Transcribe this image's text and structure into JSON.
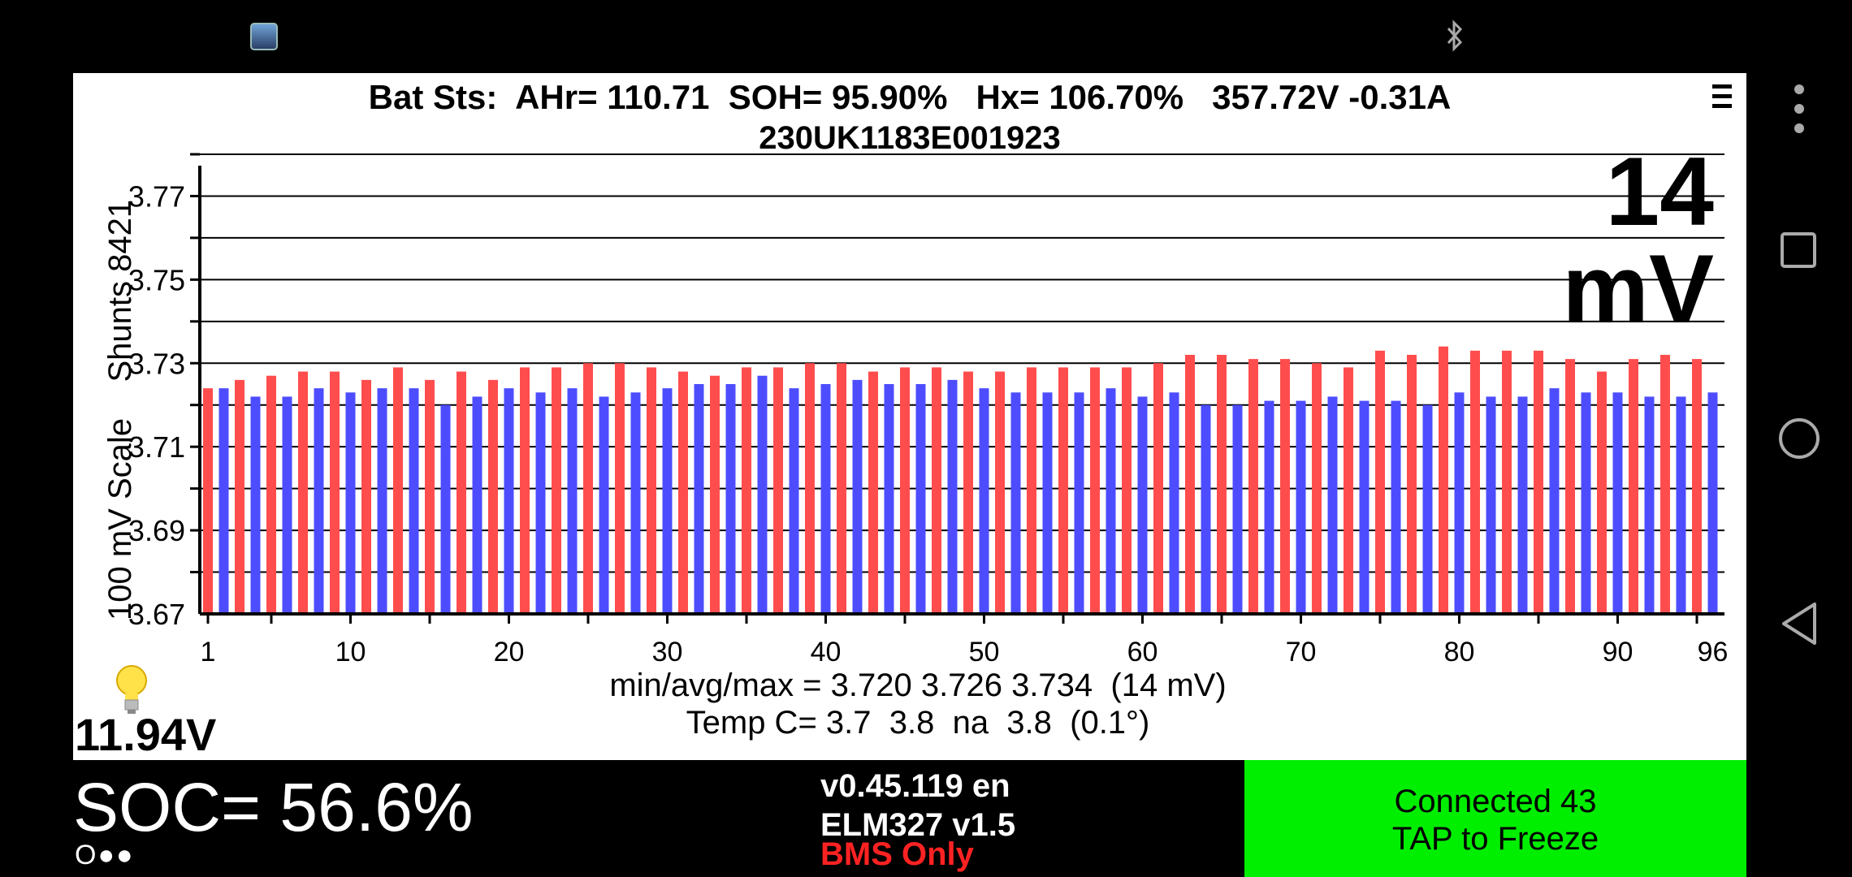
{
  "header": {
    "title_line1": "Bat Sts:  AHr= 110.71  SOH= 95.90%   Hx= 106.70%   357.72V -0.31A",
    "title_line2": "230UK1183E001923",
    "big_mv": "14 mV",
    "vertical_label": "100 mV Scale    Shunts 8421"
  },
  "stats": {
    "line1": "min/avg/max = 3.720 3.726 3.734  (14 mV)",
    "line2": "Temp C= 3.7  3.8  na  3.8  (0.1°)"
  },
  "aux_battery": "11.94V",
  "soc": "SOC= 56.6%",
  "status_dots": "O●●",
  "version": "v0.45.119 en",
  "adapter": "ELM327 v1.5",
  "mode": "BMS Only",
  "connection": {
    "line1": "Connected 43",
    "line2": "TAP to Freeze"
  },
  "colors": {
    "odd_cells": "#ff4d4d",
    "even_cells": "#4d4dff",
    "connected_bg": "#00ee00",
    "mode_text": "#ff2222"
  },
  "icons": [
    "app-thumbnail-icon",
    "bluetooth-icon",
    "menu-icon",
    "bulb-icon",
    "more-vert-icon",
    "recents-icon",
    "home-icon",
    "back-icon"
  ],
  "chart_data": {
    "type": "bar",
    "title": "",
    "ylabel": "100 mV Scale    Shunts 8421",
    "ylim": [
      3.67,
      3.78
    ],
    "yticks": [
      "3.67",
      "3.69",
      "3.71",
      "3.73",
      "3.75",
      "3.77"
    ],
    "xticks": [
      "1",
      "10",
      "20",
      "30",
      "40",
      "50",
      "60",
      "70",
      "80",
      "90",
      "96"
    ],
    "grid": true,
    "categories": [
      1,
      2,
      3,
      4,
      5,
      6,
      7,
      8,
      9,
      10,
      11,
      12,
      13,
      14,
      15,
      16,
      17,
      18,
      19,
      20,
      21,
      22,
      23,
      24,
      25,
      26,
      27,
      28,
      29,
      30,
      31,
      32,
      33,
      34,
      35,
      36,
      37,
      38,
      39,
      40,
      41,
      42,
      43,
      44,
      45,
      46,
      47,
      48,
      49,
      50,
      51,
      52,
      53,
      54,
      55,
      56,
      57,
      58,
      59,
      60,
      61,
      62,
      63,
      64,
      65,
      66,
      67,
      68,
      69,
      70,
      71,
      72,
      73,
      74,
      75,
      76,
      77,
      78,
      79,
      80,
      81,
      82,
      83,
      84,
      85,
      86,
      87,
      88,
      89,
      90,
      91,
      92,
      93,
      94,
      95,
      96
    ],
    "values": [
      3.724,
      3.724,
      3.726,
      3.722,
      3.727,
      3.722,
      3.728,
      3.724,
      3.728,
      3.723,
      3.726,
      3.724,
      3.729,
      3.724,
      3.726,
      3.72,
      3.728,
      3.722,
      3.726,
      3.724,
      3.729,
      3.723,
      3.729,
      3.724,
      3.73,
      3.722,
      3.73,
      3.723,
      3.729,
      3.724,
      3.728,
      3.725,
      3.727,
      3.725,
      3.729,
      3.727,
      3.729,
      3.724,
      3.73,
      3.725,
      3.73,
      3.726,
      3.728,
      3.725,
      3.729,
      3.725,
      3.729,
      3.726,
      3.728,
      3.724,
      3.728,
      3.723,
      3.729,
      3.723,
      3.729,
      3.723,
      3.729,
      3.724,
      3.729,
      3.722,
      3.73,
      3.723,
      3.732,
      3.72,
      3.732,
      3.72,
      3.731,
      3.721,
      3.731,
      3.721,
      3.73,
      3.722,
      3.729,
      3.721,
      3.733,
      3.721,
      3.732,
      3.72,
      3.734,
      3.723,
      3.733,
      3.722,
      3.733,
      3.722,
      3.733,
      3.724,
      3.731,
      3.723,
      3.728,
      3.723,
      3.731,
      3.722,
      3.732,
      3.722,
      3.731,
      3.723
    ]
  }
}
